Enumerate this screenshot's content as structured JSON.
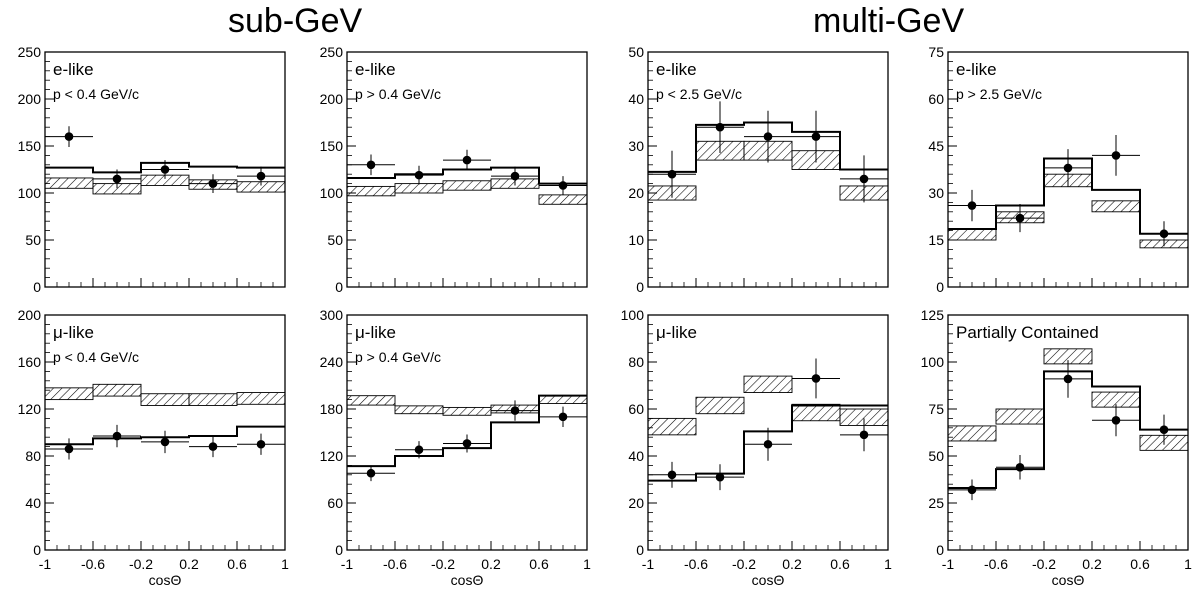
{
  "figure": {
    "group_titles": [
      "sub-GeV",
      "multi-GeV"
    ]
  },
  "chart_data": [
    {
      "type": "histogram",
      "id": "sub-e",
      "group": "sub-GeV",
      "label": "e-like",
      "sublabel": "p < 0.4 GeV/c",
      "xlabel": "",
      "ylim": [
        0,
        250
      ],
      "yticks": [
        0,
        50,
        100,
        150,
        200,
        250
      ],
      "bins": [
        -1,
        -0.6,
        -0.2,
        0.2,
        0.6,
        1
      ],
      "mc_line": [
        127,
        122,
        132,
        128,
        127
      ],
      "mc_band": [
        [
          105,
          116
        ],
        [
          99,
          110
        ],
        [
          108,
          119
        ],
        [
          104,
          114
        ],
        [
          101,
          112
        ]
      ],
      "data": {
        "x": [
          -0.8,
          -0.4,
          0.0,
          0.4,
          0.8
        ],
        "y": [
          160,
          115,
          125,
          110,
          118
        ],
        "err": [
          11,
          10,
          10,
          10,
          10
        ]
      }
    },
    {
      "type": "histogram",
      "id": "sub-e2",
      "group": "sub-GeV",
      "label": "e-like",
      "sublabel": "p > 0.4 GeV/c",
      "xlabel": "",
      "ylim": [
        0,
        250
      ],
      "yticks": [
        0,
        50,
        100,
        150,
        200,
        250
      ],
      "bins": [
        -1,
        -0.6,
        -0.2,
        0.2,
        0.6,
        1
      ],
      "mc_line": [
        116,
        120,
        125,
        127,
        110
      ],
      "mc_band": [
        [
          97,
          107
        ],
        [
          100,
          110
        ],
        [
          103,
          113
        ],
        [
          105,
          115
        ],
        [
          88,
          98
        ]
      ],
      "data": {
        "x": [
          -0.8,
          -0.4,
          0.0,
          0.4,
          0.8
        ],
        "y": [
          130,
          119,
          135,
          118,
          108
        ],
        "err": [
          11,
          10,
          11,
          10,
          10
        ]
      }
    },
    {
      "type": "histogram",
      "id": "multi-e",
      "group": "multi-GeV",
      "label": "e-like",
      "sublabel": "p < 2.5 GeV/c",
      "xlabel": "",
      "ylim": [
        0,
        50
      ],
      "yticks": [
        0,
        10,
        20,
        30,
        40,
        50
      ],
      "bins": [
        -1,
        -0.6,
        -0.2,
        0.2,
        0.6,
        1
      ],
      "mc_line": [
        24.5,
        34.5,
        35,
        33,
        25
      ],
      "mc_band": [
        [
          18.5,
          21.5
        ],
        [
          27,
          31
        ],
        [
          27,
          31
        ],
        [
          25,
          29
        ],
        [
          18.5,
          21.5
        ]
      ],
      "data": {
        "x": [
          -0.8,
          -0.4,
          0.0,
          0.4,
          0.8
        ],
        "y": [
          24,
          34,
          32,
          32,
          23
        ],
        "err": [
          5,
          5.5,
          5.5,
          5.5,
          5
        ]
      }
    },
    {
      "type": "histogram",
      "id": "multi-e2",
      "group": "multi-GeV",
      "label": "e-like",
      "sublabel": "p > 2.5 GeV/c",
      "xlabel": "",
      "ylim": [
        0,
        75
      ],
      "yticks": [
        0,
        15,
        30,
        45,
        60,
        75
      ],
      "bins": [
        -1,
        -0.6,
        -0.2,
        0.2,
        0.6,
        1
      ],
      "mc_line": [
        18.5,
        26,
        41,
        31,
        17
      ],
      "mc_band": [
        [
          15,
          18.5
        ],
        [
          20.5,
          24
        ],
        [
          32,
          36
        ],
        [
          24,
          27.5
        ],
        [
          12.5,
          15
        ]
      ],
      "data": {
        "x": [
          -0.8,
          -0.4,
          0.0,
          0.4,
          0.8
        ],
        "y": [
          26,
          22,
          38,
          42,
          17
        ],
        "err": [
          5,
          4.5,
          6,
          6.5,
          4
        ]
      }
    },
    {
      "type": "histogram",
      "id": "sub-mu",
      "group": "sub-GeV",
      "label": "μ-like",
      "sublabel": "p < 0.4 GeV/c",
      "xlabel": "cosΘ",
      "ylim": [
        0,
        200
      ],
      "yticks": [
        0,
        40,
        80,
        120,
        160,
        200
      ],
      "xticks": [
        "-1",
        "-0.6",
        "-0.2",
        "0.2",
        "0.6",
        "1"
      ],
      "bins": [
        -1,
        -0.6,
        -0.2,
        0.2,
        0.6,
        1
      ],
      "mc_line": [
        90,
        95,
        96,
        97,
        105
      ],
      "mc_band": [
        [
          128,
          138
        ],
        [
          131,
          141
        ],
        [
          123,
          133
        ],
        [
          123,
          133
        ],
        [
          124,
          134
        ]
      ],
      "data": {
        "x": [
          -0.8,
          -0.4,
          0.0,
          0.4,
          0.8
        ],
        "y": [
          86,
          97,
          92,
          88,
          90
        ],
        "err": [
          9,
          9.5,
          9.5,
          9,
          9
        ]
      }
    },
    {
      "type": "histogram",
      "id": "sub-mu2",
      "group": "sub-GeV",
      "label": "μ-like",
      "sublabel": "p > 0.4 GeV/c",
      "xlabel": "cosΘ",
      "ylim": [
        0,
        300
      ],
      "yticks": [
        0,
        60,
        120,
        180,
        240,
        300
      ],
      "xticks": [
        "-1",
        "-0.6",
        "-0.2",
        "0.2",
        "0.6",
        "1"
      ],
      "bins": [
        -1,
        -0.6,
        -0.2,
        0.2,
        0.6,
        1
      ],
      "mc_line": [
        107,
        120,
        130,
        163,
        197
      ],
      "mc_band": [
        [
          185,
          197
        ],
        [
          174,
          184
        ],
        [
          172,
          182
        ],
        [
          175,
          185
        ],
        [
          187,
          197
        ]
      ],
      "data": {
        "x": [
          -0.8,
          -0.4,
          0.0,
          0.4,
          0.8
        ],
        "y": [
          98,
          128,
          136,
          178,
          170
        ],
        "err": [
          10,
          11,
          11.5,
          13,
          13
        ]
      }
    },
    {
      "type": "histogram",
      "id": "multi-mu",
      "group": "multi-GeV",
      "label": "μ-like",
      "sublabel": "",
      "xlabel": "cosΘ",
      "ylim": [
        0,
        100
      ],
      "yticks": [
        0,
        20,
        40,
        60,
        80,
        100
      ],
      "xticks": [
        "-1",
        "-0.6",
        "-0.2",
        "0.2",
        "0.6",
        "1"
      ],
      "bins": [
        -1,
        -0.6,
        -0.2,
        0.2,
        0.6,
        1
      ],
      "mc_line": [
        29.5,
        32.5,
        50.5,
        61.5,
        61.5
      ],
      "mc_band": [
        [
          49,
          56
        ],
        [
          58,
          65
        ],
        [
          67,
          74
        ],
        [
          55,
          62
        ],
        [
          53,
          60
        ]
      ],
      "data": {
        "x": [
          -0.8,
          -0.4,
          0.0,
          0.4,
          0.8
        ],
        "y": [
          32,
          31,
          45,
          73,
          49
        ],
        "err": [
          5.5,
          5.5,
          7,
          8.5,
          7
        ]
      }
    },
    {
      "type": "histogram",
      "id": "pc",
      "group": "multi-GeV",
      "label": "Partially Contained",
      "sublabel": "",
      "xlabel": "cosΘ",
      "ylim": [
        0,
        125
      ],
      "yticks": [
        0,
        25,
        50,
        75,
        100,
        125
      ],
      "xticks": [
        "-1",
        "-0.6",
        "-0.2",
        "0.2",
        "0.6",
        "1"
      ],
      "bins": [
        -1,
        -0.6,
        -0.2,
        0.2,
        0.6,
        1
      ],
      "mc_line": [
        33,
        43,
        95,
        87,
        64
      ],
      "mc_band": [
        [
          58,
          66
        ],
        [
          67,
          75
        ],
        [
          99,
          107
        ],
        [
          76,
          84
        ],
        [
          53,
          61
        ]
      ],
      "data": {
        "x": [
          -0.8,
          -0.4,
          0.0,
          0.4,
          0.8
        ],
        "y": [
          32,
          44,
          91,
          69,
          64
        ],
        "err": [
          5.5,
          6.5,
          10,
          8.5,
          8
        ]
      }
    }
  ]
}
